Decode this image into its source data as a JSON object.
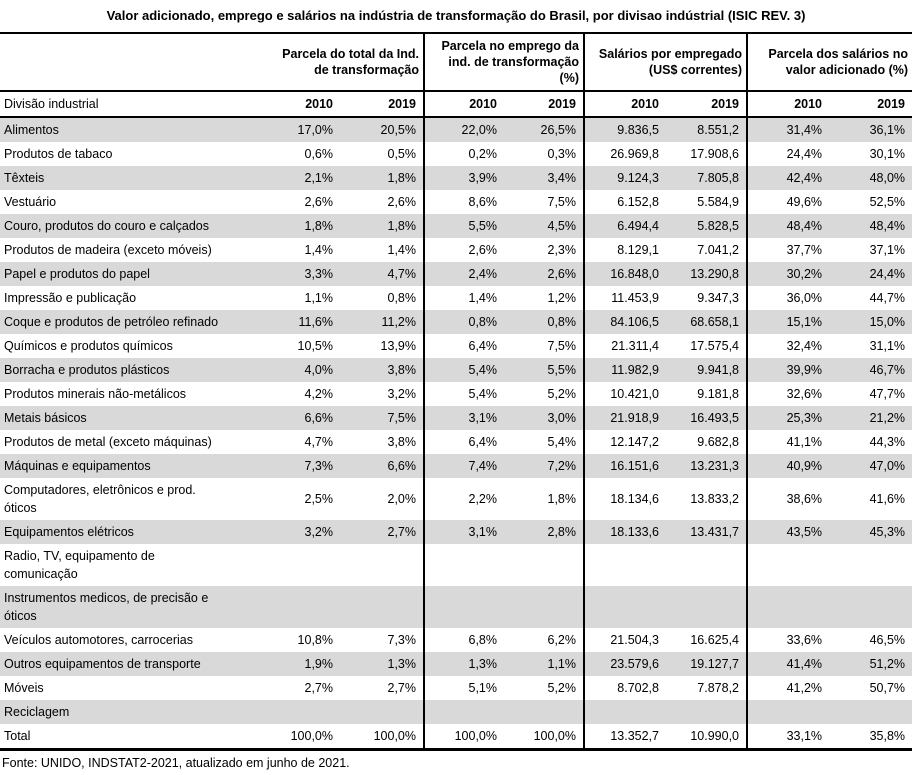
{
  "title": "Valor adicionado, emprego e salários na indústria de transformação do Brasil, por divisao indústrial (ISIC REV. 3)",
  "footer": "Fonte: UNIDO, INDSTAT2-2021, atualizado em junho de 2021.",
  "colors": {
    "stripe": "#d9d9d9",
    "border": "#000000",
    "background": "#ffffff"
  },
  "chart_data": {
    "type": "table",
    "title": "Valor adicionado, emprego e salários na indústria de transformação do Brasil, por divisao indústrial (ISIC REV. 3)",
    "row_header": "Divisão industrial",
    "years": [
      "2010",
      "2019"
    ],
    "column_groups": [
      {
        "label": "Parcela do total da Ind. de transformação",
        "line1": "Parcela do total da Ind.",
        "line2": "de transformação"
      },
      {
        "label": "Parcela no emprego da ind. de transformação (%)",
        "line1": "Parcela no emprego da",
        "line2": "ind. de transformação (%)"
      },
      {
        "label": "Salários por empregado (US$ correntes)",
        "line1": "Salários por empregado",
        "line2": "(US$ correntes)"
      },
      {
        "label": "Parcela dos salários no valor adicionado (%)",
        "line1": "Parcela dos salários no",
        "line2": "valor adicionado (%)"
      }
    ],
    "rows": [
      {
        "label": "Alimentos",
        "values": [
          "17,0%",
          "20,5%",
          "22,0%",
          "26,5%",
          "9.836,5",
          "8.551,2",
          "31,4%",
          "36,1%"
        ]
      },
      {
        "label": "Produtos de tabaco",
        "values": [
          "0,6%",
          "0,5%",
          "0,2%",
          "0,3%",
          "26.969,8",
          "17.908,6",
          "24,4%",
          "30,1%"
        ]
      },
      {
        "label": "Têxteis",
        "values": [
          "2,1%",
          "1,8%",
          "3,9%",
          "3,4%",
          "9.124,3",
          "7.805,8",
          "42,4%",
          "48,0%"
        ]
      },
      {
        "label": "Vestuário",
        "values": [
          "2,6%",
          "2,6%",
          "8,6%",
          "7,5%",
          "6.152,8",
          "5.584,9",
          "49,6%",
          "52,5%"
        ]
      },
      {
        "label": "Couro, produtos do couro e calçados",
        "values": [
          "1,8%",
          "1,8%",
          "5,5%",
          "4,5%",
          "6.494,4",
          "5.828,5",
          "48,4%",
          "48,4%"
        ]
      },
      {
        "label": "Produtos de madeira (exceto móveis)",
        "values": [
          "1,4%",
          "1,4%",
          "2,6%",
          "2,3%",
          "8.129,1",
          "7.041,2",
          "37,7%",
          "37,1%"
        ]
      },
      {
        "label": "Papel e produtos do papel",
        "values": [
          "3,3%",
          "4,7%",
          "2,4%",
          "2,6%",
          "16.848,0",
          "13.290,8",
          "30,2%",
          "24,4%"
        ]
      },
      {
        "label": "Impressão e publicação",
        "values": [
          "1,1%",
          "0,8%",
          "1,4%",
          "1,2%",
          "11.453,9",
          "9.347,3",
          "36,0%",
          "44,7%"
        ]
      },
      {
        "label": "Coque e produtos de petróleo refinado",
        "values": [
          "11,6%",
          "11,2%",
          "0,8%",
          "0,8%",
          "84.106,5",
          "68.658,1",
          "15,1%",
          "15,0%"
        ]
      },
      {
        "label": "Químicos e produtos químicos",
        "values": [
          "10,5%",
          "13,9%",
          "6,4%",
          "7,5%",
          "21.311,4",
          "17.575,4",
          "32,4%",
          "31,1%"
        ]
      },
      {
        "label": "Borracha e produtos plásticos",
        "values": [
          "4,0%",
          "3,8%",
          "5,4%",
          "5,5%",
          "11.982,9",
          "9.941,8",
          "39,9%",
          "46,7%"
        ]
      },
      {
        "label": "Produtos minerais não-metálicos",
        "values": [
          "4,2%",
          "3,2%",
          "5,4%",
          "5,2%",
          "10.421,0",
          "9.181,8",
          "32,6%",
          "47,7%"
        ]
      },
      {
        "label": "Metais básicos",
        "values": [
          "6,6%",
          "7,5%",
          "3,1%",
          "3,0%",
          "21.918,9",
          "16.493,5",
          "25,3%",
          "21,2%"
        ]
      },
      {
        "label": "Produtos de metal (exceto máquinas)",
        "values": [
          "4,7%",
          "3,8%",
          "6,4%",
          "5,4%",
          "12.147,2",
          "9.682,8",
          "41,1%",
          "44,3%"
        ]
      },
      {
        "label": "Máquinas e equipamentos",
        "values": [
          "7,3%",
          "6,6%",
          "7,4%",
          "7,2%",
          "16.151,6",
          "13.231,3",
          "40,9%",
          "47,0%"
        ]
      },
      {
        "label": "Computadores, eletrônicos e prod.\nóticos",
        "values": [
          "2,5%",
          "2,0%",
          "2,2%",
          "1,8%",
          "18.134,6",
          "13.833,2",
          "38,6%",
          "41,6%"
        ]
      },
      {
        "label": "Equipamentos elétricos",
        "values": [
          "3,2%",
          "2,7%",
          "3,1%",
          "2,8%",
          "18.133,6",
          "13.431,7",
          "43,5%",
          "45,3%"
        ]
      },
      {
        "label": "Radio, TV, equipamento de\ncomunicação",
        "values": [
          "",
          "",
          "",
          "",
          "",
          "",
          "",
          ""
        ]
      },
      {
        "label": "Instrumentos medicos, de precisão e\nóticos",
        "values": [
          "",
          "",
          "",
          "",
          "",
          "",
          "",
          ""
        ]
      },
      {
        "label": "Veículos automotores, carrocerias",
        "values": [
          "10,8%",
          "7,3%",
          "6,8%",
          "6,2%",
          "21.504,3",
          "16.625,4",
          "33,6%",
          "46,5%"
        ]
      },
      {
        "label": "Outros equipamentos de transporte",
        "values": [
          "1,9%",
          "1,3%",
          "1,3%",
          "1,1%",
          "23.579,6",
          "19.127,7",
          "41,4%",
          "51,2%"
        ]
      },
      {
        "label": "Móveis",
        "values": [
          "2,7%",
          "2,7%",
          "5,1%",
          "5,2%",
          "8.702,8",
          "7.878,2",
          "41,2%",
          "50,7%"
        ]
      },
      {
        "label": "Reciclagem",
        "values": [
          "",
          "",
          "",
          "",
          "",
          "",
          "",
          ""
        ]
      },
      {
        "label": "Total",
        "values": [
          "100,0%",
          "100,0%",
          "100,0%",
          "100,0%",
          "13.352,7",
          "10.990,0",
          "33,1%",
          "35,8%"
        ]
      }
    ],
    "source": "Fonte: UNIDO, INDSTAT2-2021, atualizado em junho de 2021."
  }
}
